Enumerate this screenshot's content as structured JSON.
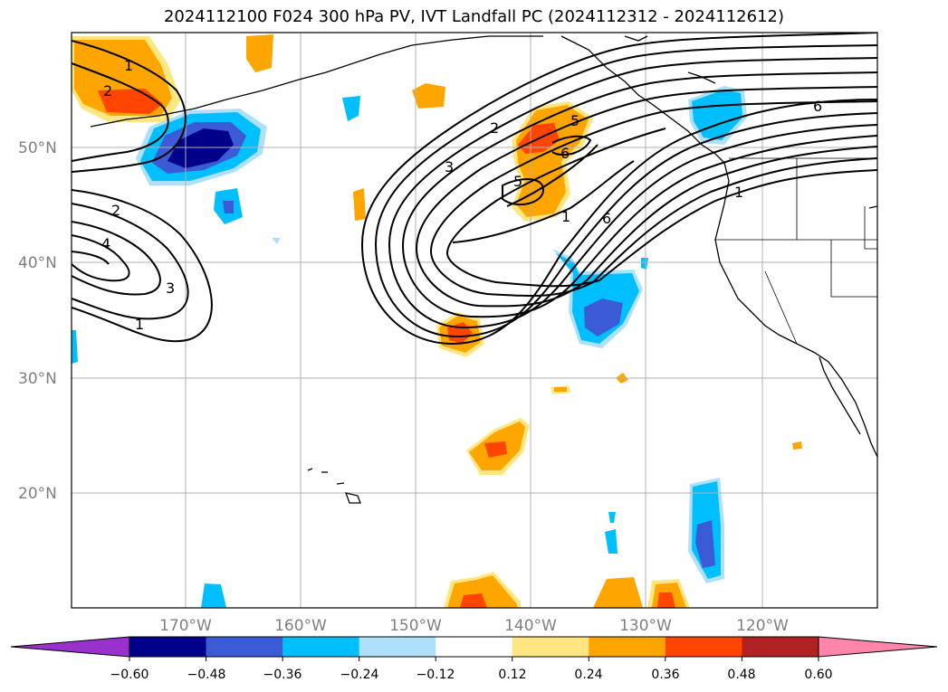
{
  "title": "2024112100 F024 300 hPa PV, IVT Landfall PC (2024112312 - 2024112612)",
  "lat_labels": [
    "50°N",
    "40°N",
    "30°N",
    "20°N"
  ],
  "lon_labels": [
    "170°W",
    "160°W",
    "150°W",
    "140°W",
    "130°W",
    "120°W"
  ],
  "colorbar": {
    "ticks": [
      "−0.60",
      "−0.48",
      "−0.36",
      "−0.24",
      "−0.12",
      "0.12",
      "0.24",
      "0.36",
      "0.48",
      "0.60"
    ],
    "colors": [
      "#9932cc",
      "#00008b",
      "#3b5bd6",
      "#00bfff",
      "#aee0fa",
      "#ffffff",
      "#ffe680",
      "#ffa500",
      "#ff4500",
      "#b22222",
      "#ff85aa"
    ]
  },
  "contour_labels": [
    "1",
    "2",
    "2",
    "4",
    "3",
    "1",
    "2",
    "3",
    "5",
    "5",
    "6",
    "1",
    "6",
    "6",
    "1"
  ]
}
